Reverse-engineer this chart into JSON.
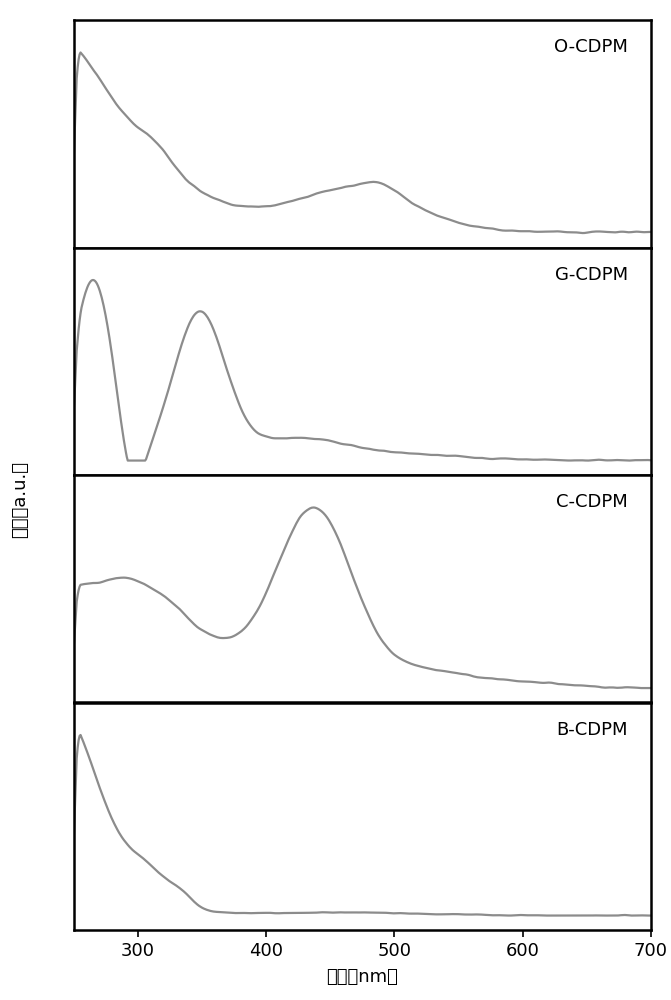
{
  "xlim": [
    250,
    700
  ],
  "xlabel": "波长（nm）",
  "ylabel": "吸收（a.u.）",
  "line_color": "#8c8c8c",
  "line_width": 1.6,
  "labels": [
    "O-CDPM",
    "G-CDPM",
    "C-CDPM",
    "B-CDPM"
  ],
  "background": "#ffffff",
  "border_color": "#000000",
  "label_fontsize": 13,
  "axis_fontsize": 13
}
